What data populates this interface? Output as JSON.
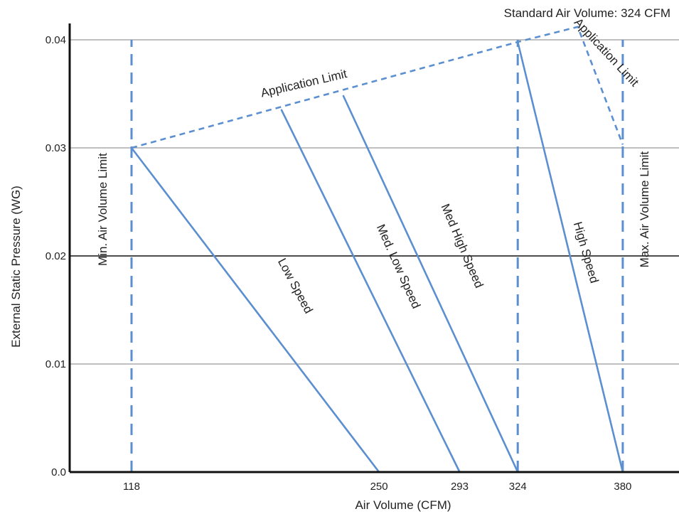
{
  "chart_data": {
    "type": "line",
    "title": "",
    "annotation": "Standard Air Volume: 324 CFM",
    "xlabel": "Air Volume (CFM)",
    "ylabel": "External Static Pressure (WG)",
    "x_ticks": [
      118,
      250,
      293,
      324,
      380
    ],
    "y_ticks": [
      "0.0",
      "0.01",
      "0.02",
      "0.03",
      "0.04"
    ],
    "xlim": [
      85,
      410
    ],
    "ylim": [
      0,
      0.04
    ],
    "grid": "horizontal",
    "colors": {
      "series": "#5b8fd0",
      "grid_light": "#9a9a9a",
      "grid_dark": "#111111",
      "axis": "#111111"
    },
    "series": [
      {
        "name": "Low Speed",
        "points": [
          [
            118,
            0.03
          ],
          [
            250,
            0.0
          ]
        ]
      },
      {
        "name": "Med. Low Speed",
        "points": [
          [
            198,
            0.0335
          ],
          [
            293,
            0.0
          ]
        ]
      },
      {
        "name": "Med High Speed",
        "points": [
          [
            231,
            0.0348
          ],
          [
            324,
            0.0
          ]
        ]
      },
      {
        "name": "High Speed",
        "points": [
          [
            324,
            0.0398
          ],
          [
            380,
            0.0
          ]
        ]
      }
    ],
    "limits": [
      {
        "name": "Min. Air Volume Limit",
        "style": "dashed",
        "points": [
          [
            118,
            0.0
          ],
          [
            118,
            0.04
          ]
        ]
      },
      {
        "name": "Max. Air Volume Limit",
        "style": "dashed",
        "points": [
          [
            380,
            0.0
          ],
          [
            380,
            0.04
          ]
        ]
      },
      {
        "name": "Standard Air Volume",
        "style": "dashed",
        "points": [
          [
            324,
            0.0
          ],
          [
            324,
            0.04
          ]
        ]
      },
      {
        "name": "Application Limit",
        "style": "dashed",
        "points": [
          [
            118,
            0.03
          ],
          [
            324,
            0.0398
          ],
          [
            356,
            0.0412
          ],
          [
            380,
            0.0303
          ]
        ]
      }
    ],
    "labels": [
      {
        "text": "Low Speed",
        "at": [
          205,
          0.0172
        ],
        "rotate": 62
      },
      {
        "text": "Med. Low Speed",
        "at": [
          260,
          0.019
        ],
        "rotate": 66
      },
      {
        "text": "Med High Speed",
        "at": [
          294,
          0.0209
        ],
        "rotate": 67
      },
      {
        "text": "High Speed",
        "at": [
          360,
          0.0203
        ],
        "rotate": 74
      },
      {
        "text": "Min. Air Volume Limit",
        "at": [
          103,
          0.0243
        ],
        "rotate": -90
      },
      {
        "text": "Max. Air Volume Limit",
        "at": [
          392,
          0.0243
        ],
        "rotate": -90
      },
      {
        "text": "Application Limit",
        "at": [
          210,
          0.0359
        ],
        "rotate": -13
      },
      {
        "text": "Application Limit",
        "at": [
          371,
          0.0388
        ],
        "rotate": 47
      }
    ]
  }
}
